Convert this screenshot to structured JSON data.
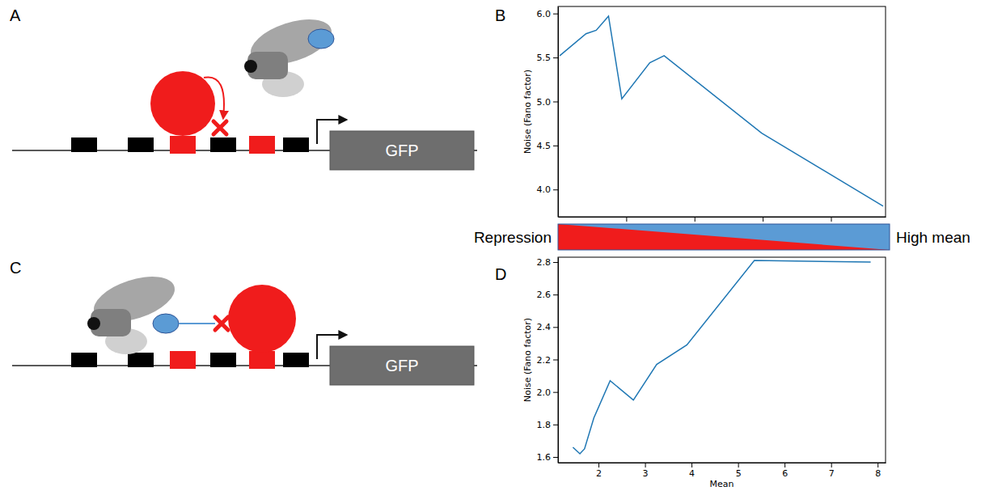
{
  "panel_labels": [
    "A",
    "B",
    "C",
    "D"
  ],
  "diagrams": [
    {
      "gene": "GFP"
    },
    {
      "gene": "GFP"
    }
  ],
  "gradient": {
    "left": "Repression",
    "right": "High mean"
  },
  "chart_data": [
    {
      "type": "line",
      "ylabel": "Noise (Fano factor)",
      "x": [
        0.05,
        0.82,
        1.12,
        1.48,
        1.87,
        2.69,
        3.11,
        5.97,
        9.53
      ],
      "values": [
        5.52,
        5.77,
        5.81,
        5.97,
        5.03,
        5.44,
        5.52,
        4.64,
        3.81
      ],
      "color": "#1f77b4",
      "xlim": [
        0,
        9.6
      ],
      "xticks": [
        2,
        4,
        6,
        8
      ],
      "ylim": [
        3.69,
        6.08
      ],
      "yticks": [
        {
          "value": 4,
          "label": "4.0"
        },
        4.5,
        {
          "value": 5,
          "label": "5.0"
        },
        5.5,
        {
          "value": 6,
          "label": "6.0"
        }
      ],
      "tick_labels": "y"
    },
    {
      "type": "line",
      "xlabel": "Mean",
      "ylabel": "Noise (Fano factor)",
      "x": [
        1.45,
        1.6,
        1.7,
        1.9,
        2.25,
        2.75,
        3.25,
        3.9,
        5.35,
        7.85
      ],
      "values": [
        1.66,
        1.62,
        1.65,
        1.84,
        2.07,
        1.95,
        2.17,
        2.29,
        2.81,
        2.8
      ],
      "color": "#1f77b4",
      "xlim": [
        1.13,
        8.17
      ],
      "xticks": [
        2,
        3,
        4,
        5,
        6,
        7,
        8
      ],
      "ylim": [
        1.565,
        2.83
      ],
      "yticks": [
        1.6,
        1.8,
        {
          "value": 2,
          "label": "2.0"
        },
        2.2,
        2.4,
        2.6,
        2.8
      ]
    }
  ]
}
